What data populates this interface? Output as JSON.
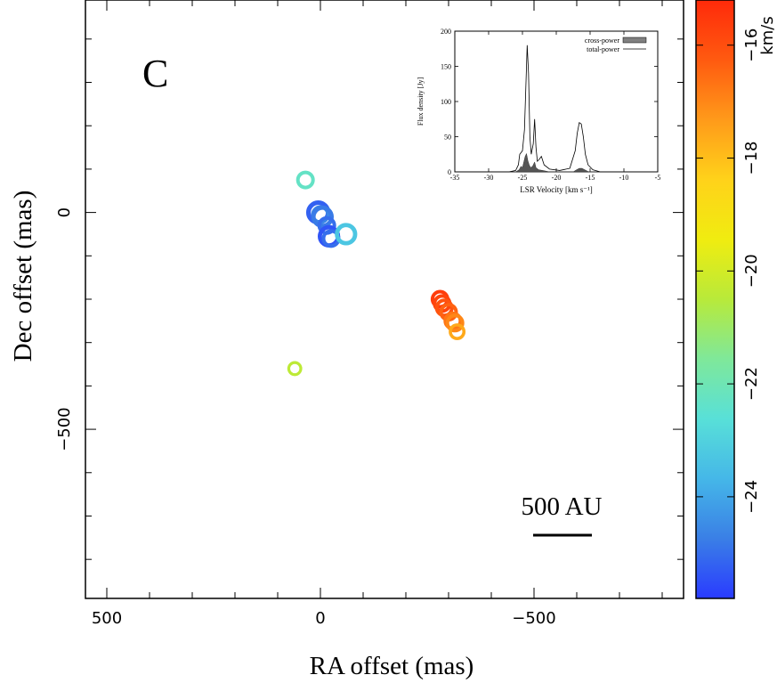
{
  "chart_data": [
    {
      "type": "scatter",
      "panel_label": "C",
      "xlabel": "RA offset (mas)",
      "ylabel": "Dec offset (mas)",
      "xlim": [
        550,
        -850
      ],
      "ylim": [
        -890,
        490
      ],
      "x_ticks": [
        500,
        0,
        -500
      ],
      "x_tick_labels": [
        "500",
        "0",
        "−500"
      ],
      "y_ticks": [
        0,
        -500
      ],
      "y_tick_labels": [
        "0",
        "−500"
      ],
      "grid": false,
      "scale_bar_label": "500 AU",
      "colorbar": {
        "label": "km/s",
        "range": [
          -25.8,
          -15.2
        ],
        "ticks": [
          -16,
          -18,
          -20,
          -22,
          -24
        ],
        "tick_labels": [
          "−16",
          "−18",
          "−20",
          "−22",
          "−24"
        ],
        "colors": [
          "#2a3bff",
          "#3a7fe6",
          "#45b7e8",
          "#58e0d8",
          "#7fe89a",
          "#b8ea3a",
          "#f0ec10",
          "#ffd21a",
          "#ff9a1a",
          "#ff5a10",
          "#ff2a0a"
        ]
      },
      "spots": [
        {
          "ra": 35,
          "dec": 75,
          "vlsr": -22.3,
          "size": 1.0
        },
        {
          "ra": 5,
          "dec": 0,
          "vlsr": -25.2,
          "size": 1.3
        },
        {
          "ra": 0,
          "dec": -5,
          "vlsr": -24.6,
          "size": 1.0
        },
        {
          "ra": -5,
          "dec": -10,
          "vlsr": -24.8,
          "size": 1.2
        },
        {
          "ra": -15,
          "dec": -30,
          "vlsr": -25.0,
          "size": 1.0
        },
        {
          "ra": -20,
          "dec": -55,
          "vlsr": -25.4,
          "size": 1.2
        },
        {
          "ra": -25,
          "dec": -60,
          "vlsr": -25.0,
          "size": 1.0
        },
        {
          "ra": -60,
          "dec": -50,
          "vlsr": -23.3,
          "size": 1.2
        },
        {
          "ra": 60,
          "dec": -360,
          "vlsr": -20.4,
          "size": 0.8
        },
        {
          "ra": -280,
          "dec": -200,
          "vlsr": -15.6,
          "size": 1.0
        },
        {
          "ra": -285,
          "dec": -210,
          "vlsr": -15.8,
          "size": 1.0
        },
        {
          "ra": -290,
          "dec": -220,
          "vlsr": -16.1,
          "size": 1.0
        },
        {
          "ra": -300,
          "dec": -230,
          "vlsr": -16.4,
          "size": 1.0
        },
        {
          "ra": -310,
          "dec": -250,
          "vlsr": -16.7,
          "size": 1.0
        },
        {
          "ra": -315,
          "dec": -255,
          "vlsr": -17.0,
          "size": 1.0
        },
        {
          "ra": -320,
          "dec": -275,
          "vlsr": -17.6,
          "size": 0.9
        }
      ]
    },
    {
      "type": "line",
      "title": "",
      "xlabel": "LSR Velocity [km s⁻¹]",
      "ylabel": "Flux density [Jy]",
      "xlim": [
        -35,
        -5
      ],
      "ylim": [
        0,
        200
      ],
      "x_ticks": [
        -35,
        -30,
        -25,
        -20,
        -15,
        -10,
        -5
      ],
      "x_tick_labels": [
        "-35",
        "-30",
        "-25",
        "-20",
        "-15",
        "-10",
        "-5"
      ],
      "y_ticks": [
        0,
        50,
        100,
        150,
        200
      ],
      "y_tick_labels": [
        "0",
        "50",
        "100",
        "150",
        "200"
      ],
      "legend": [
        {
          "name": "cross-power",
          "style": "filled"
        },
        {
          "name": "total-power",
          "style": "line"
        }
      ],
      "legend_position": "top-right",
      "series": [
        {
          "name": "total-power",
          "x": [
            -35,
            -27,
            -26,
            -25.6,
            -25.4,
            -25.0,
            -24.7,
            -24.5,
            -24.3,
            -24.1,
            -23.9,
            -23.7,
            -23.4,
            -23.2,
            -23.0,
            -22.8,
            -22.5,
            -22.2,
            -21.8,
            -21.0,
            -19.5,
            -18.0,
            -17.2,
            -16.9,
            -16.6,
            -16.3,
            -16.0,
            -15.7,
            -15.3,
            -14.6,
            -13.5,
            -5
          ],
          "y": [
            0,
            0,
            2,
            10,
            25,
            30,
            60,
            120,
            180,
            140,
            50,
            25,
            40,
            75,
            35,
            15,
            18,
            22,
            10,
            4,
            2,
            5,
            30,
            55,
            70,
            68,
            50,
            25,
            10,
            3,
            0,
            0
          ]
        },
        {
          "name": "cross-power",
          "x": [
            -35,
            -26,
            -25.5,
            -25.2,
            -25.0,
            -24.8,
            -24.6,
            -24.4,
            -24.2,
            -24.0,
            -23.8,
            -23.5,
            -23.2,
            -23.0,
            -22.6,
            -22.0,
            -21.0,
            -17.5,
            -17.0,
            -16.6,
            -16.2,
            -15.8,
            -15.2,
            -5
          ],
          "y": [
            0,
            0,
            3,
            8,
            6,
            14,
            22,
            26,
            16,
            10,
            6,
            8,
            14,
            6,
            3,
            2,
            0,
            0,
            3,
            5,
            5,
            3,
            0,
            0
          ]
        }
      ]
    }
  ]
}
